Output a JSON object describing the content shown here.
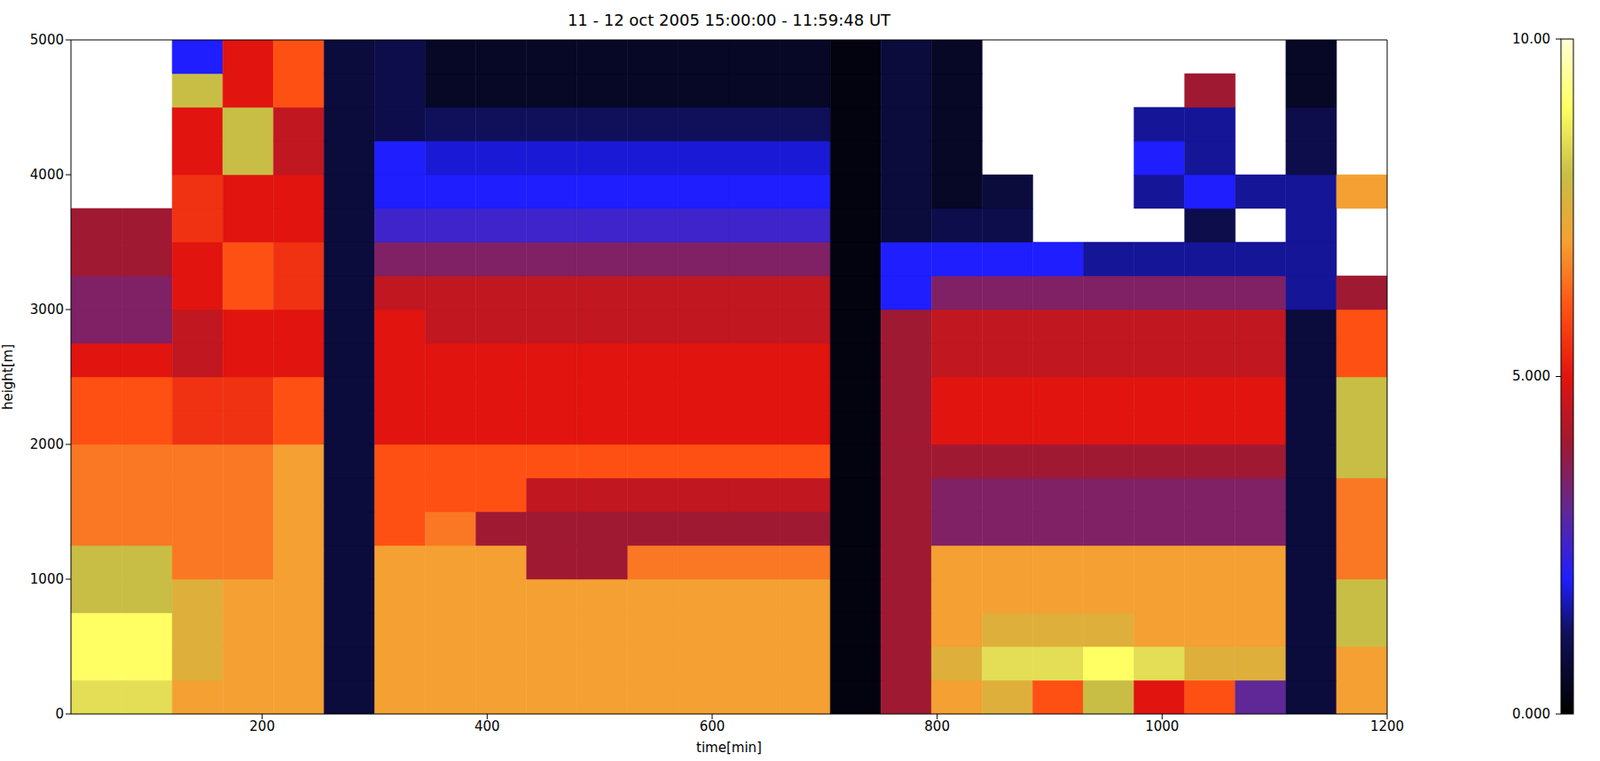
{
  "chart_data": {
    "type": "heatmap",
    "title": "11 - 12 oct 2005 15:00:00 - 11:59:48 UT",
    "x_label": "time[min]",
    "y_label": "height[m]",
    "xlim": [
      30,
      1200
    ],
    "ylim": [
      0,
      5000
    ],
    "xticks": [
      200,
      400,
      600,
      800,
      1000,
      1200
    ],
    "yticks": [
      0,
      1000,
      2000,
      3000,
      4000,
      5000
    ],
    "x_edges": [
      30,
      75,
      120,
      165,
      210,
      255,
      300,
      345,
      390,
      435,
      480,
      525,
      570,
      615,
      660,
      705,
      750,
      795,
      840,
      885,
      930,
      975,
      1020,
      1065,
      1110,
      1155,
      1200
    ],
    "y_edges": [
      0,
      250,
      500,
      750,
      1000,
      1250,
      1500,
      1750,
      2000,
      2250,
      2500,
      2750,
      3000,
      3250,
      3500,
      3750,
      4000,
      4250,
      4500,
      4750,
      5000
    ],
    "values": [
      [
        8.5,
        8.5,
        7,
        7,
        7,
        0.8,
        7,
        7,
        7,
        7,
        7,
        7,
        7,
        7,
        7,
        0.2,
        4,
        7,
        7.5,
        6,
        8,
        5,
        6,
        3,
        0.8,
        7
      ],
      [
        9,
        9,
        7.5,
        7,
        7,
        0.8,
        7,
        7,
        7,
        7,
        7,
        7,
        7,
        7,
        7,
        0.2,
        4,
        7.5,
        8.5,
        8.5,
        9,
        8.5,
        7.5,
        7.5,
        0.8,
        7
      ],
      [
        9,
        9,
        7.5,
        7,
        7,
        0.8,
        7,
        7,
        7,
        7,
        7,
        7,
        7,
        7,
        7,
        0.2,
        4,
        7,
        7.5,
        7.5,
        7.5,
        7,
        7,
        7,
        0.8,
        8
      ],
      [
        8,
        8,
        7.5,
        7,
        7,
        0.8,
        7,
        7,
        7,
        7,
        7,
        7,
        7,
        7,
        7,
        0.2,
        4,
        7,
        7,
        7,
        7,
        7,
        7,
        7,
        0.8,
        8
      ],
      [
        8,
        8,
        6.5,
        6.5,
        7,
        0.8,
        7,
        7,
        7,
        4,
        4,
        6.5,
        6.5,
        6.5,
        6.5,
        0.2,
        4,
        7,
        7,
        7,
        7,
        7,
        7,
        7,
        0.8,
        6.5
      ],
      [
        6.5,
        6.5,
        6.5,
        6.5,
        7,
        0.8,
        6,
        6.5,
        4,
        4,
        4,
        4,
        4,
        4,
        4,
        0.2,
        4,
        3.5,
        3.5,
        3.5,
        3.5,
        3.5,
        3.5,
        3.5,
        0.8,
        6.5
      ],
      [
        6.5,
        6.5,
        6.5,
        6.5,
        7,
        0.8,
        6,
        6,
        6,
        4.5,
        4.5,
        4.5,
        4.5,
        4.5,
        4.5,
        0.2,
        4,
        3.5,
        3.5,
        3.5,
        3.5,
        3.5,
        3.5,
        3.5,
        0.8,
        6.5
      ],
      [
        6.5,
        6.5,
        6.5,
        6.5,
        7,
        0.8,
        6,
        6,
        6,
        6,
        6,
        6,
        6,
        6,
        6,
        0.2,
        4,
        4,
        4,
        4,
        4,
        4,
        4,
        4,
        0.8,
        8
      ],
      [
        6,
        6,
        5.5,
        5.5,
        6,
        0.8,
        5,
        5,
        5,
        5,
        5,
        5,
        5,
        5,
        5,
        0.2,
        4,
        5,
        5,
        5,
        5,
        5,
        5,
        5,
        0.8,
        8
      ],
      [
        6,
        6,
        5.5,
        5.5,
        6,
        0.8,
        5,
        5,
        5,
        5,
        5,
        5,
        5,
        5,
        5,
        0.2,
        4,
        5,
        5,
        5,
        5,
        5,
        5,
        5,
        0.8,
        8
      ],
      [
        5,
        5,
        4.5,
        5,
        5,
        0.8,
        5,
        5,
        5,
        5,
        5,
        5,
        5,
        5,
        5,
        0.2,
        4,
        4.5,
        4.5,
        4.5,
        4.5,
        4.5,
        4.5,
        4.5,
        0.8,
        6
      ],
      [
        3.5,
        3.5,
        4.5,
        5,
        5,
        0.8,
        5,
        4.5,
        4.5,
        4.5,
        4.5,
        4.5,
        4.5,
        4.5,
        4.5,
        0.2,
        4,
        4.5,
        4.5,
        4.5,
        4.5,
        4.5,
        4.5,
        4.5,
        0.8,
        6
      ],
      [
        3.5,
        3.5,
        5,
        6,
        5.5,
        0.8,
        4.5,
        4.5,
        4.5,
        4.5,
        4.5,
        4.5,
        4.5,
        4.5,
        4.5,
        0.2,
        2,
        3.5,
        3.5,
        3.5,
        3.5,
        3.5,
        3.5,
        3.5,
        1.5,
        4
      ],
      [
        4,
        4,
        5,
        6,
        5.5,
        0.8,
        3.5,
        3.5,
        3.5,
        3.5,
        3.5,
        3.5,
        3.5,
        3.5,
        3.5,
        0.2,
        2,
        2,
        2,
        2,
        1.5,
        1.5,
        1.5,
        1.5,
        1.5,
        null
      ],
      [
        4,
        4,
        5.5,
        5,
        5,
        0.8,
        2.5,
        2.5,
        2.5,
        2.5,
        2.5,
        2.5,
        2.5,
        2.5,
        2.5,
        0.2,
        0.8,
        1,
        1,
        null,
        null,
        null,
        1,
        null,
        1.5,
        null
      ],
      [
        null,
        null,
        5.5,
        5,
        5,
        0.8,
        2,
        2,
        2,
        2,
        2,
        2,
        2,
        2,
        2,
        0.2,
        0.8,
        0.5,
        0.8,
        null,
        null,
        1.5,
        2,
        1.5,
        1.5,
        7
      ],
      [
        null,
        null,
        5,
        8,
        4.5,
        0.8,
        2,
        1.8,
        1.8,
        1.8,
        1.8,
        1.8,
        1.8,
        1.8,
        1.8,
        0.2,
        0.8,
        0.5,
        null,
        null,
        null,
        2,
        1.5,
        null,
        1,
        null
      ],
      [
        null,
        null,
        5,
        8,
        4.5,
        0.8,
        1,
        1.2,
        1.2,
        1.2,
        1.2,
        1.2,
        1.2,
        1.2,
        1.2,
        0.2,
        0.8,
        0.5,
        null,
        null,
        null,
        1.5,
        1.5,
        null,
        1,
        null
      ],
      [
        null,
        null,
        8,
        5,
        6,
        0.8,
        1,
        0.5,
        0.5,
        0.5,
        0.5,
        0.5,
        0.5,
        0.5,
        0.5,
        0.2,
        0.8,
        0.5,
        null,
        null,
        null,
        null,
        4,
        null,
        0.5,
        null
      ],
      [
        null,
        null,
        2,
        5,
        6,
        0.8,
        1,
        0.5,
        0.5,
        0.5,
        0.5,
        0.5,
        0.5,
        0.5,
        0.5,
        0.2,
        0.8,
        0.5,
        null,
        null,
        null,
        null,
        null,
        null,
        0.5,
        null
      ]
    ],
    "colorbar": {
      "range": [
        0,
        10
      ],
      "ticks": [
        {
          "value": 0,
          "label": "0.000"
        },
        {
          "value": 5,
          "label": "5.000"
        },
        {
          "value": 10,
          "label": "10.00"
        }
      ]
    }
  }
}
